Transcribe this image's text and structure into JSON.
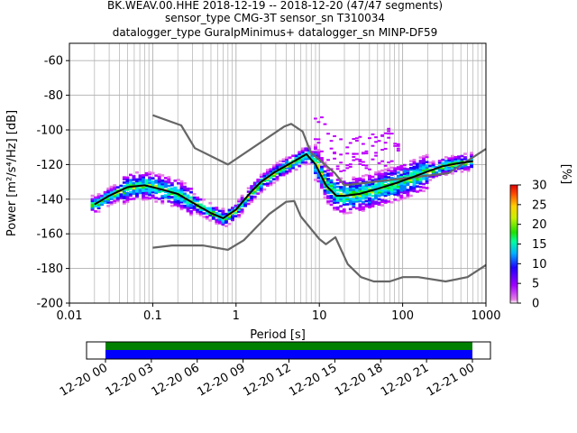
{
  "title": {
    "line1": "BK.WEAV.00.HHE   2018-12-19 -- 2018-12-20  (47/47 segments)",
    "line2": "sensor_type CMG-3T sensor_sn T310034",
    "line3": "datalogger_type GuralpMinimus+ datalogger_sn MINP-DF59"
  },
  "axes": {
    "xlabel": "Period [s]",
    "ylabel": "Power [m²/s⁴/Hz] [dB]",
    "x_ticks": [
      "0.01",
      "0.1",
      "1",
      "10",
      "100",
      "1000"
    ],
    "y_ticks": [
      "-60",
      "-80",
      "-100",
      "-120",
      "-140",
      "-160",
      "-180",
      "-200"
    ]
  },
  "colorbar": {
    "label": "[%]",
    "ticks": [
      "0",
      "5",
      "10",
      "15",
      "20",
      "25",
      "30"
    ]
  },
  "timeline": {
    "ticks": [
      "12-20 00",
      "12-20 03",
      "12-20 06",
      "12-20 09",
      "12-20 12",
      "12-20 15",
      "12-20 18",
      "12-20 21",
      "12-21 00"
    ]
  },
  "chart_data": {
    "type": "heatmap",
    "title": "BK.WEAV.00.HHE   2018-12-19 -- 2018-12-20  (47/47 segments)",
    "xlabel": "Period [s]",
    "ylabel": "Power [m²/s⁴/Hz] [dB]",
    "x_scale": "log",
    "xlim": [
      0.01,
      1000
    ],
    "ylim": [
      -200,
      -50
    ],
    "grid": true,
    "colorbar_range": [
      0,
      30
    ],
    "series": [
      {
        "name": "noise-model-high",
        "color": "#666666",
        "x": [
          0.1,
          0.22,
          0.32,
          0.8,
          3.8,
          4.6,
          6.3,
          7.9,
          15.4,
          20,
          354.8,
          1000
        ],
        "y": [
          -91.5,
          -97.4,
          -110.5,
          -120,
          -98,
          -96.5,
          -101,
          -113,
          -125,
          -132,
          -125,
          -111
        ]
      },
      {
        "name": "noise-model-low",
        "color": "#666666",
        "x": [
          0.1,
          0.17,
          0.4,
          0.8,
          1.24,
          2.5,
          4.0,
          5.0,
          6.0,
          10.0,
          12.0,
          15.6,
          21.9,
          31.6,
          45.0,
          70.0,
          101.0,
          154.0,
          328.0,
          600.0,
          1000.0
        ],
        "y": [
          -168,
          -166.7,
          -166.7,
          -169.2,
          -163.7,
          -148.6,
          -141.5,
          -141.1,
          -150,
          -163,
          -166,
          -162,
          -177.5,
          -185,
          -187.5,
          -187.5,
          -185,
          -185,
          -187.5,
          -185,
          -178
        ]
      },
      {
        "name": "mode",
        "color": "#000000",
        "x": [
          0.02,
          0.03,
          0.05,
          0.08,
          0.12,
          0.2,
          0.3,
          0.5,
          0.7,
          1.0,
          1.5,
          2.0,
          3.0,
          5.0,
          7.0,
          9.0,
          12.0,
          16.0,
          20.0,
          30.0,
          50.0,
          80.0,
          120.0,
          200.0,
          300.0,
          500.0,
          700.0
        ],
        "y": [
          -143,
          -138,
          -133,
          -132,
          -134,
          -137,
          -142,
          -148,
          -151,
          -146,
          -136,
          -130,
          -124,
          -118,
          -114,
          -120,
          -132,
          -138,
          -138,
          -137,
          -134,
          -131,
          -128,
          -124,
          -121,
          -119,
          -118
        ]
      }
    ]
  }
}
